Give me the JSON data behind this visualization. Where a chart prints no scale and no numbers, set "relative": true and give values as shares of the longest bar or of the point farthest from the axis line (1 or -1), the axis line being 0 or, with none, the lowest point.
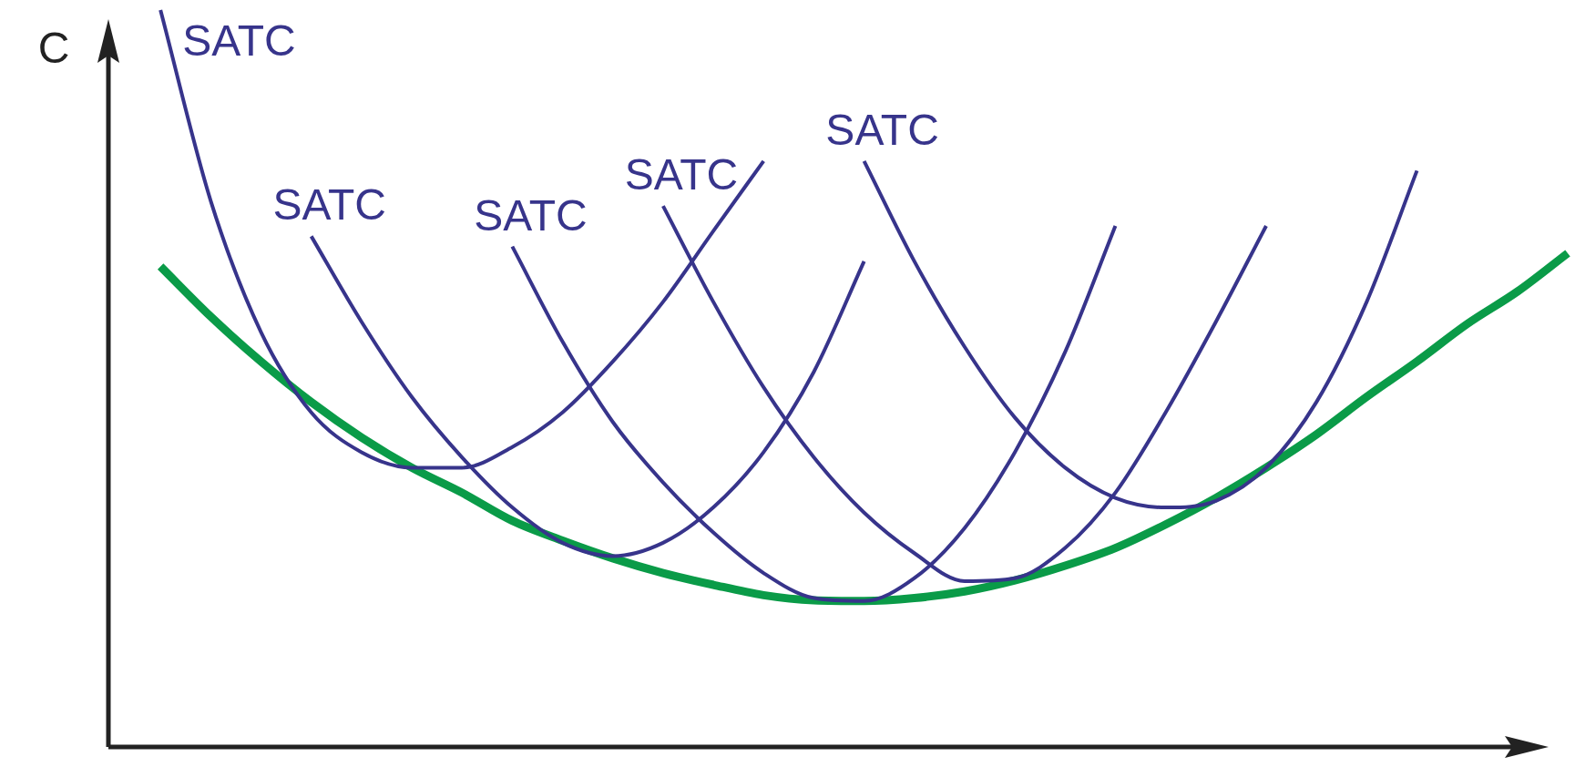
{
  "chart_data": {
    "type": "line",
    "relative": true,
    "ylabel": "C",
    "legend": false,
    "marker": "none",
    "categories": [
      null,
      null,
      null,
      null,
      null,
      null,
      null,
      null,
      null,
      null,
      null,
      null,
      null,
      null,
      null,
      null,
      null,
      null,
      null,
      null,
      null,
      null,
      null,
      null,
      null,
      null,
      null,
      null,
      null,
      null
    ],
    "series": [
      {
        "name": "SATC",
        "color": "#37348b",
        "values": [
          null,
          1,
          0.741,
          0.563,
          0.454,
          0.4,
          0.379,
          0.379,
          0.407,
          0.454,
          0.523,
          0.604,
          0.7,
          0.795,
          null,
          null,
          null,
          null,
          null,
          null,
          null,
          null,
          null,
          null,
          null,
          null,
          null,
          null,
          null,
          null
        ]
      },
      {
        "name": "SATC",
        "color": "#37348b",
        "values": [
          null,
          null,
          null,
          null,
          0.693,
          0.577,
          0.475,
          0.393,
          0.325,
          0.277,
          0.259,
          0.277,
          0.325,
          0.4,
          0.509,
          0.659,
          null,
          null,
          null,
          null,
          null,
          null,
          null,
          null,
          null,
          null,
          null,
          null,
          null,
          null
        ]
      },
      {
        "name": "SATC",
        "color": "#37348b",
        "values": [
          null,
          null,
          null,
          null,
          null,
          null,
          null,
          null,
          0.679,
          0.55,
          0.441,
          0.359,
          0.291,
          0.236,
          0.202,
          0.198,
          0.229,
          0.297,
          0.4,
          0.536,
          0.707,
          null,
          null,
          null,
          null,
          null,
          null,
          null,
          null,
          null
        ]
      },
      {
        "name": "SATC",
        "color": "#37348b",
        "values": [
          null,
          null,
          null,
          null,
          null,
          null,
          null,
          null,
          null,
          null,
          null,
          0.734,
          0.604,
          0.488,
          0.393,
          0.318,
          0.263,
          0.225,
          0.229,
          0.27,
          0.345,
          0.454,
          0.577,
          0.707,
          null,
          null,
          null,
          null,
          null,
          null
        ]
      },
      {
        "name": "SATC",
        "color": "#37348b",
        "values": [
          null,
          null,
          null,
          null,
          null,
          null,
          null,
          null,
          null,
          null,
          null,
          null,
          null,
          null,
          null,
          0.795,
          0.659,
          0.543,
          0.447,
          0.379,
          0.338,
          0.325,
          0.334,
          0.379,
          0.468,
          0.604,
          0.782,
          null,
          null,
          null
        ]
      },
      {
        "color": "#0a9b48",
        "values": [
          null,
          0.652,
          0.584,
          0.523,
          0.468,
          0.42,
          0.379,
          0.345,
          0.307,
          0.28,
          0.256,
          0.236,
          0.22,
          0.206,
          0.199,
          0.198,
          0.202,
          0.211,
          0.226,
          0.246,
          0.27,
          0.302,
          0.338,
          0.379,
          0.424,
          0.475,
          0.523,
          0.574,
          0.618,
          0.67
        ]
      }
    ]
  }
}
